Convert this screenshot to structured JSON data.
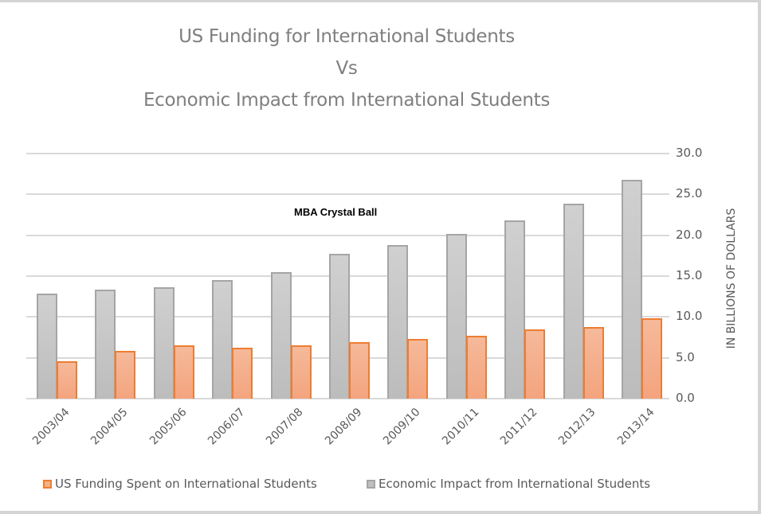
{
  "chart_data": {
    "type": "bar",
    "title": "US Funding for International Students Vs Economic Impact from International Students",
    "title_lines": [
      "US Funding for International Students",
      "Vs",
      "Economic Impact from International Students"
    ],
    "categories": [
      "2003/04",
      "2004/05",
      "2005/06",
      "2006/07",
      "2007/08",
      "2008/09",
      "2009/10",
      "2010/11",
      "2011/12",
      "2012/13",
      "2013/14"
    ],
    "series": [
      {
        "name": "Economic Impact from International Students",
        "color": "#bfbfbf",
        "border": "#a5a5a5",
        "values": [
          12.9,
          13.3,
          13.6,
          14.5,
          15.5,
          17.7,
          18.8,
          20.2,
          21.8,
          23.9,
          26.8
        ]
      },
      {
        "name": "US Funding Spent on International Students",
        "color": "#f4b183",
        "border": "#ed7d31",
        "values": [
          4.6,
          5.8,
          6.5,
          6.2,
          6.5,
          6.9,
          7.3,
          7.7,
          8.5,
          8.8,
          9.8
        ]
      }
    ],
    "xlabel": "",
    "ylabel": "IN BILLIONS OF DOLLARS",
    "y_axis_position": "right",
    "ylim": [
      0,
      30
    ],
    "yticks": [
      "0.0",
      "5.0",
      "10.0",
      "15.0",
      "20.0",
      "25.0",
      "30.0"
    ],
    "grid": true,
    "legend_position": "bottom",
    "legend": [
      "US Funding Spent on International Students",
      "Economic Impact from International Students"
    ],
    "annotations": [
      "MBA Crystal Ball"
    ]
  }
}
